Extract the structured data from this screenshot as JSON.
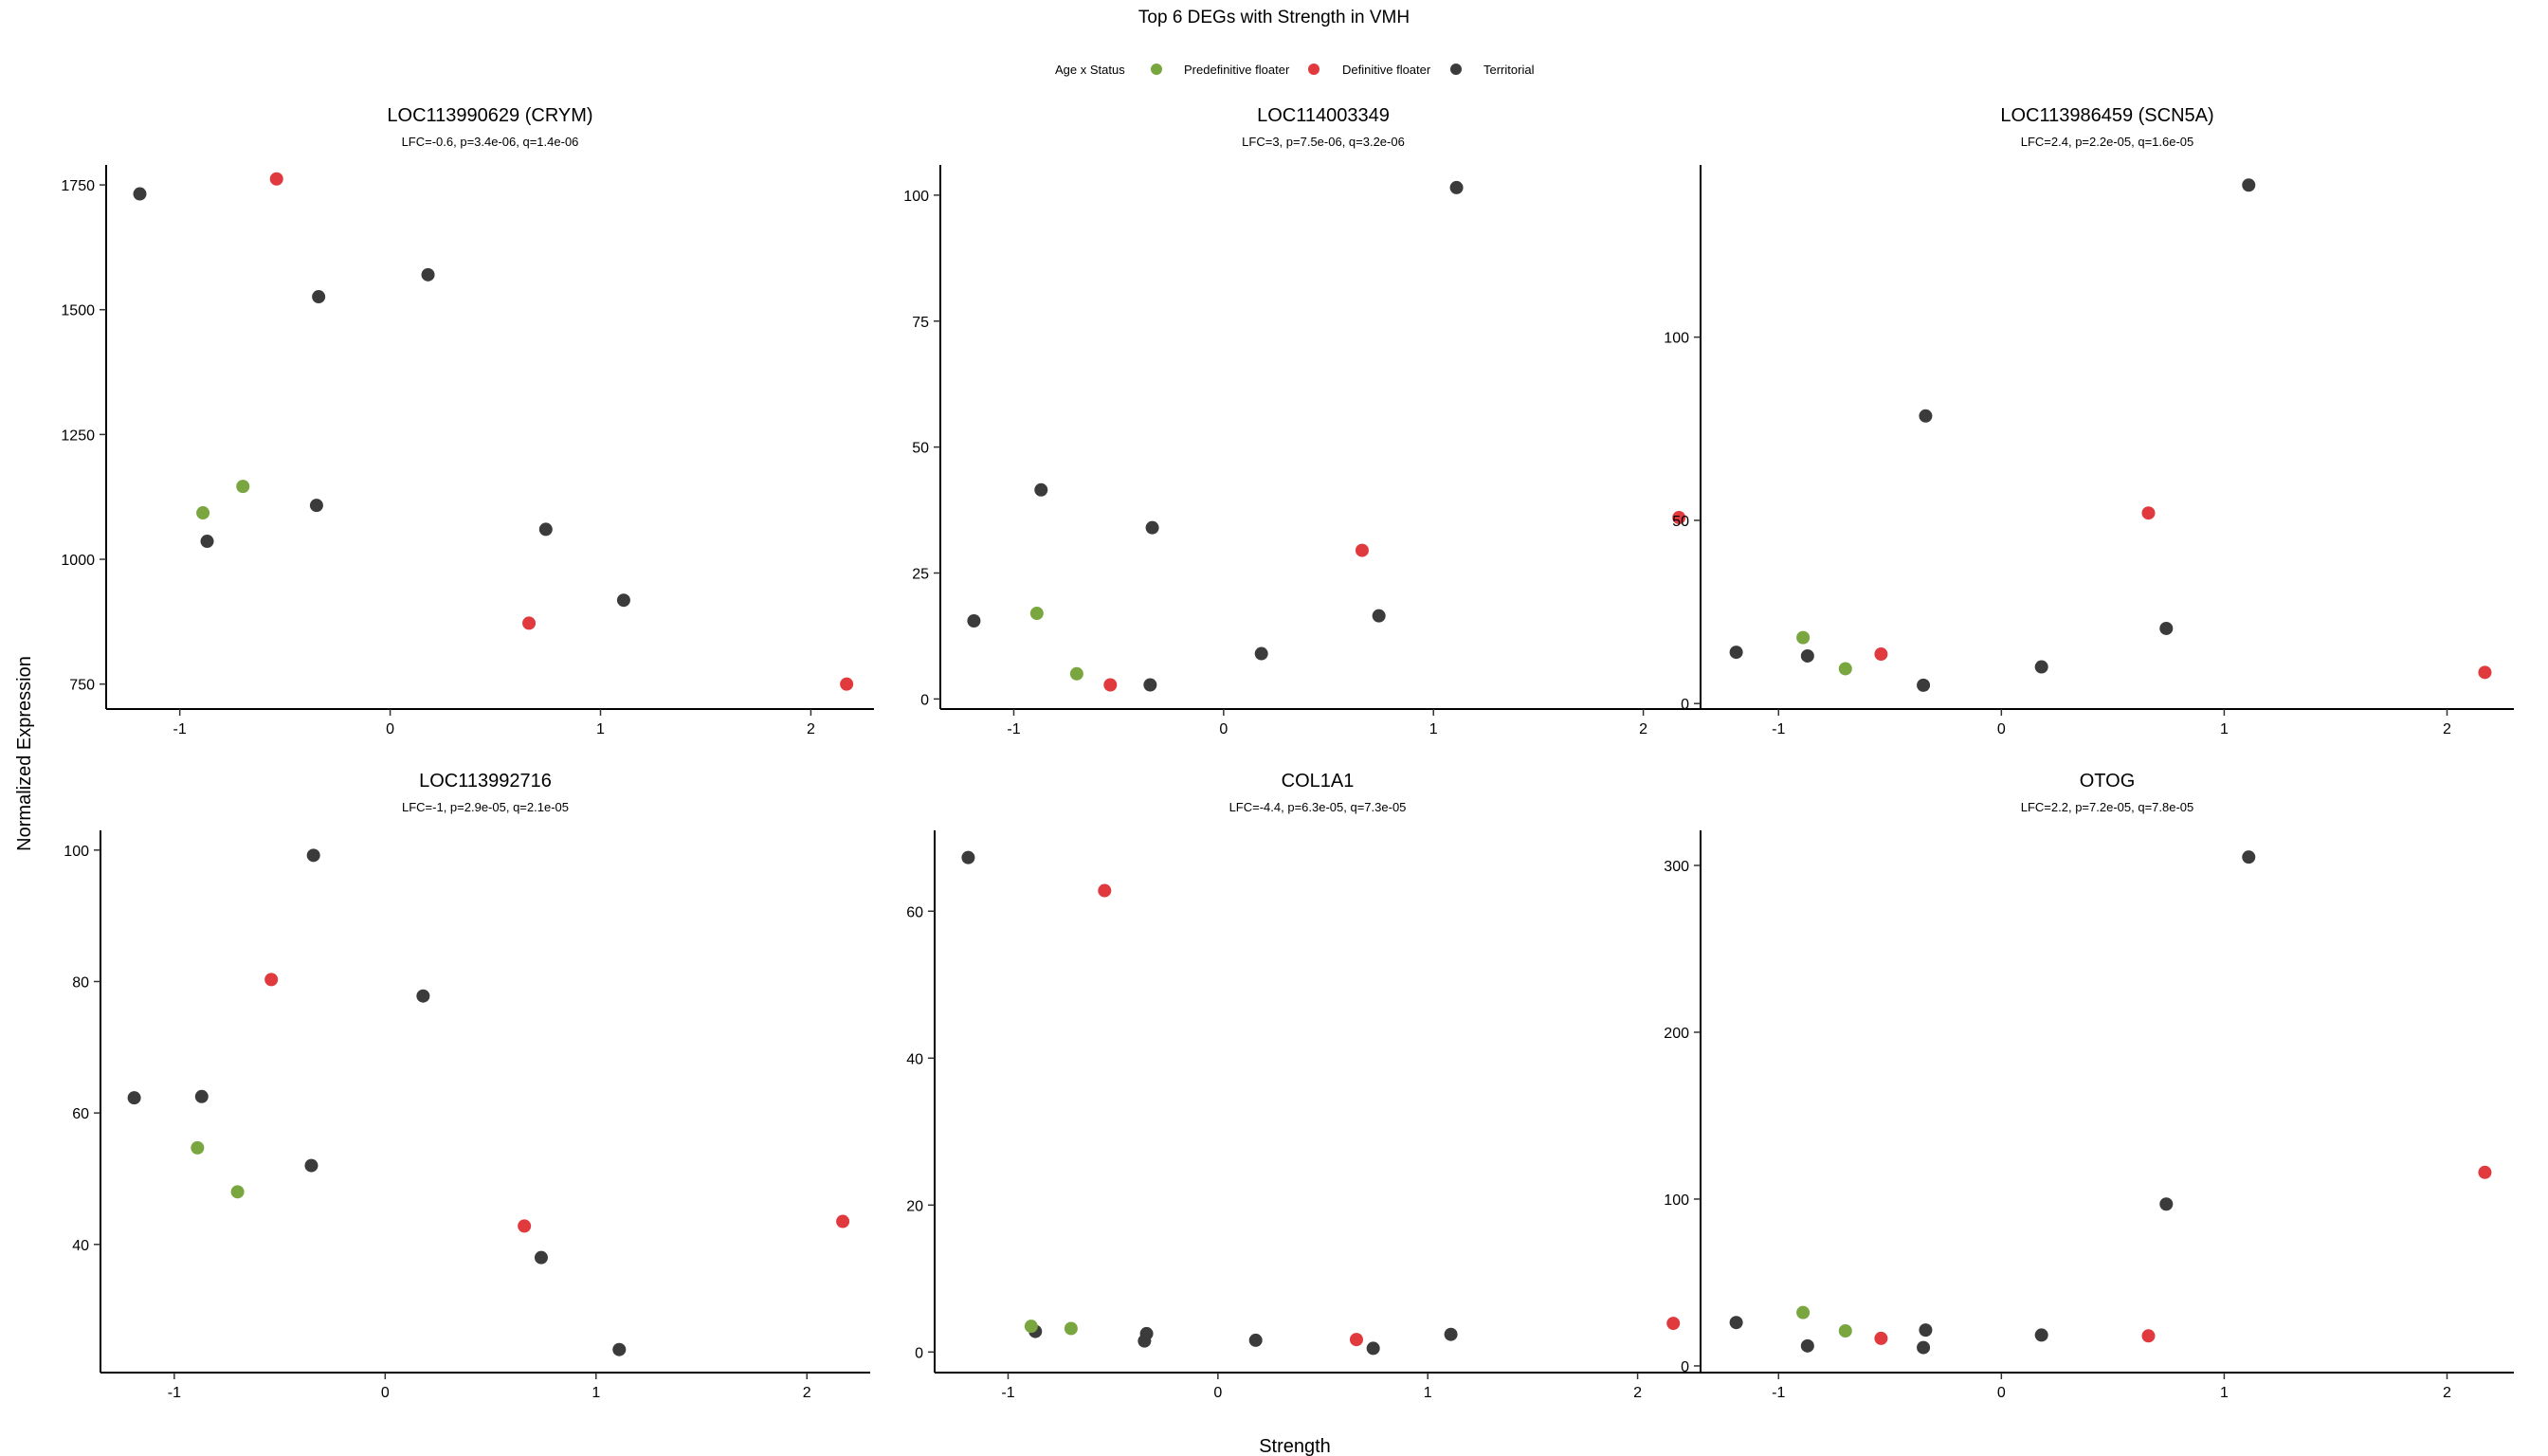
{
  "figure": {
    "title": "Top 6 DEGs with Strength in VMH",
    "xlabel": "Strength",
    "ylabel": "Normalized Expression"
  },
  "legend": {
    "title": "Age x Status",
    "entries": [
      {
        "key": "pre",
        "label": "Predefinitive floater",
        "color": "#7aa640"
      },
      {
        "key": "def",
        "label": "Definitive floater",
        "color": "#e0393e"
      },
      {
        "key": "ter",
        "label": "Territorial",
        "color": "#3b3b3b"
      }
    ]
  },
  "colors": {
    "pre": "#7aa640",
    "def": "#e0393e",
    "ter": "#3b3b3b"
  },
  "chart_data": [
    {
      "type": "scatter",
      "title": "LOC113990629 (CRYM)",
      "subtitle": "LFC=-0.6, p=3.4e-06, q=1.4e-06",
      "xlim": [
        -1.35,
        2.3
      ],
      "ylim": [
        700,
        1790
      ],
      "xticks": [
        -1,
        0,
        1,
        2
      ],
      "xticklabels": [
        "-1",
        "0",
        "1",
        "2"
      ],
      "yticks": [
        750,
        1000,
        1250,
        1500,
        1750
      ],
      "yticklabels": [
        "750",
        "1000",
        "1250",
        "1500",
        "1750"
      ],
      "points": [
        {
          "x": -1.19,
          "y": 1732,
          "group": "ter"
        },
        {
          "x": -0.87,
          "y": 1036,
          "group": "ter"
        },
        {
          "x": -0.89,
          "y": 1093,
          "group": "pre"
        },
        {
          "x": -0.7,
          "y": 1146,
          "group": "pre"
        },
        {
          "x": -0.54,
          "y": 1762,
          "group": "def"
        },
        {
          "x": -0.34,
          "y": 1526,
          "group": "ter"
        },
        {
          "x": -0.35,
          "y": 1108,
          "group": "ter"
        },
        {
          "x": 0.18,
          "y": 1570,
          "group": "ter"
        },
        {
          "x": 0.66,
          "y": 872,
          "group": "def"
        },
        {
          "x": 0.74,
          "y": 1060,
          "group": "ter"
        },
        {
          "x": 1.11,
          "y": 918,
          "group": "ter"
        },
        {
          "x": 2.17,
          "y": 750,
          "group": "def"
        }
      ]
    },
    {
      "type": "scatter",
      "title": "LOC114003349",
      "subtitle": "LFC=3, p=7.5e-06, q=3.2e-06",
      "xlim": [
        -1.35,
        2.3
      ],
      "ylim": [
        -2,
        106
      ],
      "xticks": [
        -1,
        0,
        1,
        2
      ],
      "xticklabels": [
        "-1",
        "0",
        "1",
        "2"
      ],
      "yticks": [
        0,
        25,
        50,
        75,
        100
      ],
      "yticklabels": [
        "0",
        "25",
        "50",
        "75",
        "100"
      ],
      "points": [
        {
          "x": -1.19,
          "y": 15.5,
          "group": "ter"
        },
        {
          "x": -0.87,
          "y": 41.5,
          "group": "ter"
        },
        {
          "x": -0.89,
          "y": 17,
          "group": "pre"
        },
        {
          "x": -0.7,
          "y": 5,
          "group": "pre"
        },
        {
          "x": -0.54,
          "y": 2.8,
          "group": "def"
        },
        {
          "x": -0.34,
          "y": 34,
          "group": "ter"
        },
        {
          "x": -0.35,
          "y": 2.8,
          "group": "ter"
        },
        {
          "x": 0.18,
          "y": 9,
          "group": "ter"
        },
        {
          "x": 0.66,
          "y": 29.5,
          "group": "def"
        },
        {
          "x": 0.74,
          "y": 16.5,
          "group": "ter"
        },
        {
          "x": 1.11,
          "y": 101.5,
          "group": "ter"
        },
        {
          "x": 2.17,
          "y": 36,
          "group": "def"
        }
      ]
    },
    {
      "type": "scatter",
      "title": "LOC113986459 (SCN5A)",
      "subtitle": "LFC=2.4, p=2.2e-05, q=1.6e-05",
      "xlim": [
        -1.35,
        2.3
      ],
      "ylim": [
        -1.5,
        147
      ],
      "xticks": [
        -1,
        0,
        1,
        2
      ],
      "xticklabels": [
        "-1",
        "0",
        "1",
        "2"
      ],
      "yticks": [
        0,
        50,
        100
      ],
      "yticklabels": [
        "0",
        "50",
        "100"
      ],
      "points": [
        {
          "x": -1.19,
          "y": 14,
          "group": "ter"
        },
        {
          "x": -0.87,
          "y": 13,
          "group": "ter"
        },
        {
          "x": -0.89,
          "y": 18,
          "group": "pre"
        },
        {
          "x": -0.7,
          "y": 9.5,
          "group": "pre"
        },
        {
          "x": -0.54,
          "y": 13.5,
          "group": "def"
        },
        {
          "x": -0.34,
          "y": 78.5,
          "group": "ter"
        },
        {
          "x": -0.35,
          "y": 5,
          "group": "ter"
        },
        {
          "x": 0.18,
          "y": 10,
          "group": "ter"
        },
        {
          "x": 0.66,
          "y": 52,
          "group": "def"
        },
        {
          "x": 0.74,
          "y": 20.5,
          "group": "ter"
        },
        {
          "x": 1.11,
          "y": 141.5,
          "group": "ter"
        },
        {
          "x": 2.17,
          "y": 8.5,
          "group": "def"
        }
      ]
    },
    {
      "type": "scatter",
      "title": "LOC113992716",
      "subtitle": "LFC=-1, p=2.9e-05, q=2.1e-05",
      "xlim": [
        -1.35,
        2.3
      ],
      "ylim": [
        20.5,
        103
      ],
      "xticks": [
        -1,
        0,
        1,
        2
      ],
      "xticklabels": [
        "-1",
        "0",
        "1",
        "2"
      ],
      "yticks": [
        40,
        60,
        80,
        100
      ],
      "yticklabels": [
        "40",
        "60",
        "80",
        "100"
      ],
      "points": [
        {
          "x": -1.19,
          "y": 62.3,
          "group": "ter"
        },
        {
          "x": -0.87,
          "y": 62.5,
          "group": "ter"
        },
        {
          "x": -0.89,
          "y": 54.7,
          "group": "pre"
        },
        {
          "x": -0.7,
          "y": 48,
          "group": "pre"
        },
        {
          "x": -0.54,
          "y": 80.3,
          "group": "def"
        },
        {
          "x": -0.34,
          "y": 99.2,
          "group": "ter"
        },
        {
          "x": -0.35,
          "y": 52,
          "group": "ter"
        },
        {
          "x": 0.18,
          "y": 77.8,
          "group": "ter"
        },
        {
          "x": 0.66,
          "y": 42.8,
          "group": "def"
        },
        {
          "x": 0.74,
          "y": 38,
          "group": "ter"
        },
        {
          "x": 1.11,
          "y": 24,
          "group": "ter"
        },
        {
          "x": 2.17,
          "y": 43.5,
          "group": "def"
        }
      ]
    },
    {
      "type": "scatter",
      "title": "COL1A1",
      "subtitle": "LFC=-4.4, p=6.3e-05, q=7.3e-05",
      "xlim": [
        -1.35,
        2.3
      ],
      "ylim": [
        -2.8,
        71
      ],
      "xticks": [
        -1,
        0,
        1,
        2
      ],
      "xticklabels": [
        "-1",
        "0",
        "1",
        "2"
      ],
      "yticks": [
        0,
        20,
        40,
        60
      ],
      "yticklabels": [
        "0",
        "20",
        "40",
        "60"
      ],
      "points": [
        {
          "x": -1.19,
          "y": 67.3,
          "group": "ter"
        },
        {
          "x": -0.87,
          "y": 2.8,
          "group": "ter"
        },
        {
          "x": -0.89,
          "y": 3.5,
          "group": "pre"
        },
        {
          "x": -0.7,
          "y": 3.2,
          "group": "pre"
        },
        {
          "x": -0.54,
          "y": 62.8,
          "group": "def"
        },
        {
          "x": -0.34,
          "y": 2.5,
          "group": "ter"
        },
        {
          "x": -0.35,
          "y": 1.5,
          "group": "ter"
        },
        {
          "x": 0.18,
          "y": 1.6,
          "group": "ter"
        },
        {
          "x": 0.66,
          "y": 1.7,
          "group": "def"
        },
        {
          "x": 0.74,
          "y": 0.5,
          "group": "ter"
        },
        {
          "x": 1.11,
          "y": 2.4,
          "group": "ter"
        },
        {
          "x": 2.17,
          "y": 3.9,
          "group": "def"
        }
      ]
    },
    {
      "type": "scatter",
      "title": "OTOG",
      "subtitle": "LFC=2.2, p=7.2e-05, q=7.8e-05",
      "xlim": [
        -1.35,
        2.3
      ],
      "ylim": [
        -4,
        321
      ],
      "xticks": [
        -1,
        0,
        1,
        2
      ],
      "xticklabels": [
        "-1",
        "0",
        "1",
        "2"
      ],
      "yticks": [
        0,
        100,
        200,
        300
      ],
      "yticklabels": [
        "0",
        "100",
        "200",
        "300"
      ],
      "points": [
        {
          "x": -1.19,
          "y": 26,
          "group": "ter"
        },
        {
          "x": -0.87,
          "y": 12,
          "group": "ter"
        },
        {
          "x": -0.89,
          "y": 32,
          "group": "pre"
        },
        {
          "x": -0.7,
          "y": 21,
          "group": "pre"
        },
        {
          "x": -0.54,
          "y": 16.5,
          "group": "def"
        },
        {
          "x": -0.34,
          "y": 21.5,
          "group": "ter"
        },
        {
          "x": -0.35,
          "y": 11,
          "group": "ter"
        },
        {
          "x": 0.18,
          "y": 18.5,
          "group": "ter"
        },
        {
          "x": 0.66,
          "y": 18,
          "group": "def"
        },
        {
          "x": 0.74,
          "y": 97,
          "group": "ter"
        },
        {
          "x": 1.11,
          "y": 305,
          "group": "ter"
        },
        {
          "x": 2.17,
          "y": 116,
          "group": "def"
        }
      ]
    }
  ]
}
